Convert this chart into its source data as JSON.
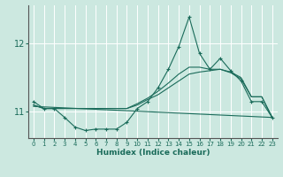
{
  "xlabel": "Humidex (Indice chaleur)",
  "background_color": "#cce8e0",
  "line_color": "#1a6b5a",
  "grid_color": "#ffffff",
  "xlim": [
    -0.5,
    23.5
  ],
  "ylim": [
    10.62,
    12.55
  ],
  "yticks": [
    11,
    12
  ],
  "xticks": [
    0,
    1,
    2,
    3,
    4,
    5,
    6,
    7,
    8,
    9,
    10,
    11,
    12,
    13,
    14,
    15,
    16,
    17,
    18,
    19,
    20,
    21,
    22,
    23
  ],
  "series1_x": [
    0,
    1,
    2,
    3,
    4,
    5,
    6,
    7,
    8,
    9,
    10,
    11,
    12,
    13,
    14,
    15,
    16,
    17,
    18,
    19,
    20,
    21,
    22,
    23
  ],
  "series1_y": [
    11.15,
    11.05,
    11.05,
    10.92,
    10.78,
    10.73,
    10.75,
    10.75,
    10.75,
    10.85,
    11.05,
    11.15,
    11.35,
    11.62,
    11.95,
    12.38,
    11.85,
    11.62,
    11.78,
    11.6,
    11.45,
    11.15,
    11.15,
    10.92
  ],
  "series2_x": [
    0,
    1,
    2,
    3,
    4,
    5,
    6,
    7,
    8,
    9,
    10,
    11,
    12,
    13,
    14,
    15,
    16,
    17,
    18,
    19,
    20,
    21,
    22,
    23
  ],
  "series2_y": [
    11.1,
    11.05,
    11.05,
    11.05,
    11.05,
    11.05,
    11.05,
    11.05,
    11.05,
    11.05,
    11.1,
    11.18,
    11.25,
    11.35,
    11.45,
    11.55,
    11.58,
    11.6,
    11.62,
    11.58,
    11.5,
    11.22,
    11.22,
    10.92
  ],
  "series3_x": [
    0,
    23
  ],
  "series3_y": [
    11.08,
    10.92
  ],
  "series4_x": [
    0,
    1,
    2,
    3,
    4,
    5,
    6,
    7,
    8,
    9,
    10,
    11,
    12,
    13,
    14,
    15,
    16,
    17,
    18,
    19,
    20,
    21,
    22,
    23
  ],
  "series4_y": [
    11.1,
    11.05,
    11.05,
    11.05,
    11.05,
    11.05,
    11.05,
    11.05,
    11.05,
    11.05,
    11.12,
    11.2,
    11.3,
    11.42,
    11.55,
    11.65,
    11.65,
    11.62,
    11.62,
    11.57,
    11.48,
    11.22,
    11.22,
    10.92
  ]
}
